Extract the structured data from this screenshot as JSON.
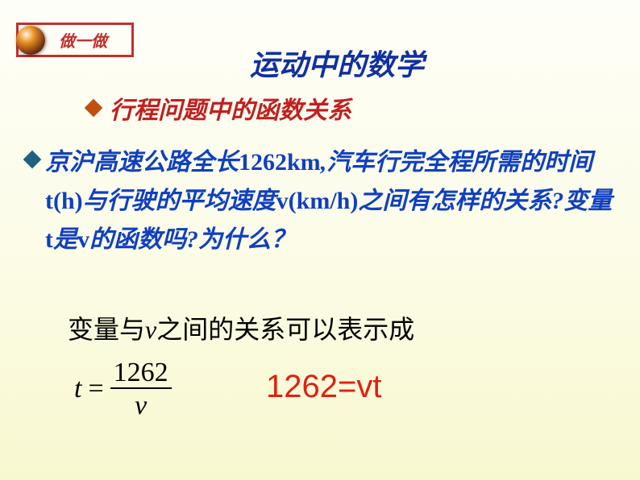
{
  "tag": {
    "label": "做一做",
    "border_color": "#c03030",
    "text_color": "#c03030"
  },
  "title": {
    "text": "运动中的数学",
    "color": "#1030a0",
    "fontsize": 36
  },
  "section": {
    "label": "行程问题中的函数关系",
    "color": "#c02020",
    "diamond_color": "#c05010"
  },
  "problem": {
    "diamond_color": "#206080",
    "text_color": "#1040c0",
    "leading": "京沪高速公路全长",
    "distance": "1262km",
    "part2": ",汽车行完全程所需的时间",
    "tvar": "t(h)",
    "part3": "与行驶的平均速度",
    "vvar": "v(km/h)",
    "part4": "之间有怎样的关系?变量",
    "tvar2": "t",
    "part5": "是",
    "vvar2": "v",
    "part6": "的函数吗?为什么？"
  },
  "expression": {
    "prefix": "变量与",
    "v_italic": "v",
    "suffix": "之间的关系可以表示成",
    "color": "#000000",
    "fontsize": 32
  },
  "formula": {
    "lhs": "t",
    "eq": "=",
    "numerator": "1262",
    "denominator": "v",
    "color": "#000000"
  },
  "result": {
    "text": "1262=vt",
    "color": "#e02010",
    "fontsize": 40
  },
  "background": {
    "gradient_top": "#fefef8",
    "gradient_bottom": "#f8f8d0"
  }
}
